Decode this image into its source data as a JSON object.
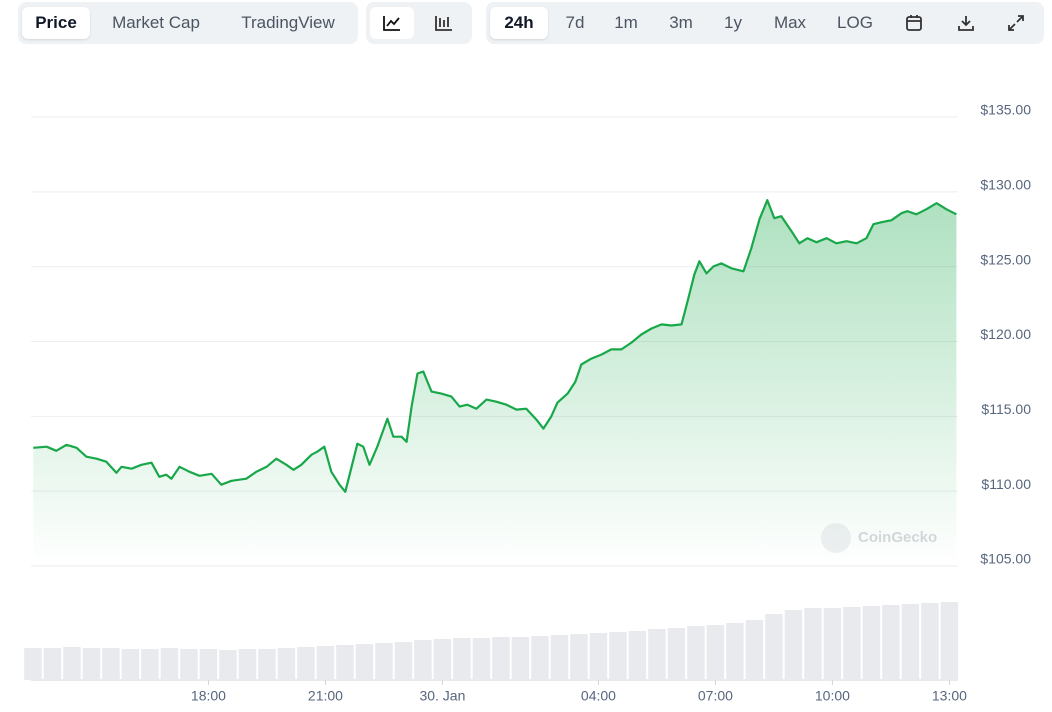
{
  "toolbar": {
    "view_tabs": [
      "Price",
      "Market Cap",
      "TradingView"
    ],
    "view_selected": 0,
    "range_tabs": [
      "24h",
      "7d",
      "1m",
      "3m",
      "1y",
      "Max",
      "LOG"
    ],
    "range_selected": 0
  },
  "watermark": "CoinGecko",
  "chart_data": {
    "type": "line",
    "area": true,
    "color": "#18a84a",
    "grid": true,
    "y_axis_side": "right",
    "x": [
      13.51,
      13.85,
      14.1,
      14.36,
      14.62,
      14.87,
      15.13,
      15.38,
      15.64,
      15.77,
      16.03,
      16.28,
      16.54,
      16.74,
      16.92,
      17.05,
      17.26,
      17.51,
      17.77,
      18.08,
      18.33,
      18.59,
      18.97,
      19.23,
      19.49,
      19.74,
      20.0,
      20.18,
      20.38,
      20.64,
      20.79,
      20.97,
      21.15,
      21.36,
      21.51,
      21.67,
      21.82,
      21.97,
      22.13,
      22.33,
      22.59,
      22.74,
      22.95,
      23.08,
      23.21,
      23.36,
      23.51,
      23.72,
      23.97,
      24.23,
      24.44,
      24.64,
      24.87,
      25.13,
      25.38,
      25.64,
      25.9,
      26.15,
      26.41,
      26.59,
      26.79,
      26.95,
      27.21,
      27.41,
      27.56,
      27.82,
      28.08,
      28.33,
      28.59,
      28.85,
      29.1,
      29.36,
      29.62,
      29.87,
      30.13,
      30.28,
      30.46,
      30.59,
      30.77,
      30.95,
      31.15,
      31.41,
      31.72,
      31.92,
      32.13,
      32.33,
      32.51,
      32.69,
      32.95,
      33.15,
      33.36,
      33.59,
      33.85,
      34.1,
      34.36,
      34.62,
      34.87,
      35.05,
      35.26,
      35.51,
      35.77,
      35.92,
      36.15,
      36.41,
      36.67,
      36.92,
      37.18
    ],
    "values": [
      112.9,
      112.97,
      112.7,
      113.1,
      112.9,
      112.3,
      112.17,
      111.97,
      111.23,
      111.63,
      111.5,
      111.76,
      111.9,
      110.96,
      111.1,
      110.83,
      111.63,
      111.3,
      111.03,
      111.16,
      110.43,
      110.69,
      110.83,
      111.3,
      111.63,
      112.17,
      111.76,
      111.43,
      111.76,
      112.43,
      112.64,
      112.97,
      111.3,
      110.43,
      109.96,
      111.63,
      113.17,
      112.97,
      111.76,
      112.97,
      114.84,
      113.64,
      113.64,
      113.3,
      115.65,
      117.86,
      117.99,
      116.65,
      116.52,
      116.32,
      115.65,
      115.78,
      115.51,
      116.12,
      115.98,
      115.78,
      115.45,
      115.51,
      114.78,
      114.18,
      114.98,
      115.92,
      116.52,
      117.32,
      118.46,
      118.86,
      119.13,
      119.47,
      119.47,
      119.93,
      120.47,
      120.87,
      121.14,
      121.07,
      121.14,
      122.61,
      124.49,
      125.36,
      124.55,
      125.02,
      125.22,
      124.89,
      124.69,
      126.23,
      128.17,
      129.44,
      128.24,
      128.37,
      127.37,
      126.56,
      126.9,
      126.63,
      126.9,
      126.56,
      126.7,
      126.56,
      126.9,
      127.84,
      127.97,
      128.1,
      128.57,
      128.71,
      128.5,
      128.84,
      129.24,
      128.84,
      128.5
    ],
    "xlim": [
      13.45,
      37.22
    ],
    "xticks": [
      {
        "value": 18,
        "label": "18:00"
      },
      {
        "value": 21,
        "label": "21:00"
      },
      {
        "value": 24,
        "label": "30. Jan"
      },
      {
        "value": 28,
        "label": "04:00"
      },
      {
        "value": 31,
        "label": "07:00"
      },
      {
        "value": 34,
        "label": "10:00"
      },
      {
        "value": 37,
        "label": "13:00"
      }
    ],
    "ylim": [
      105,
      135
    ],
    "yticks": [
      {
        "value": 105,
        "label": "$105.00"
      },
      {
        "value": 110,
        "label": "$110.00"
      },
      {
        "value": 115,
        "label": "$115.00"
      },
      {
        "value": 120,
        "label": "$120.00"
      },
      {
        "value": 125,
        "label": "$125.00"
      },
      {
        "value": 130,
        "label": "$130.00"
      },
      {
        "value": 135,
        "label": "$135.00"
      }
    ],
    "volume": {
      "color": "#e8eaed",
      "lim": [
        0,
        100
      ],
      "x": [
        13.5,
        14,
        14.5,
        15,
        15.5,
        16,
        16.5,
        17,
        17.5,
        18,
        18.5,
        19,
        19.5,
        20,
        20.5,
        21,
        21.5,
        22,
        22.5,
        23,
        23.5,
        24,
        24.5,
        25,
        25.5,
        26,
        26.5,
        27,
        27.5,
        28,
        28.5,
        29,
        29.5,
        30,
        30.5,
        31,
        31.5,
        32,
        32.5,
        33,
        33.5,
        34,
        34.5,
        35,
        35.5,
        36,
        36.5,
        37
      ],
      "values": [
        32,
        32,
        33,
        32,
        32,
        31,
        31,
        32,
        31,
        31,
        30,
        31,
        31,
        32,
        33,
        34,
        35,
        36,
        37,
        38,
        40,
        41,
        42,
        42,
        43,
        43,
        44,
        45,
        46,
        47,
        48,
        49,
        51,
        52,
        54,
        55,
        57,
        60,
        66,
        70,
        72,
        72,
        73,
        74,
        75,
        76,
        77,
        78
      ]
    }
  }
}
